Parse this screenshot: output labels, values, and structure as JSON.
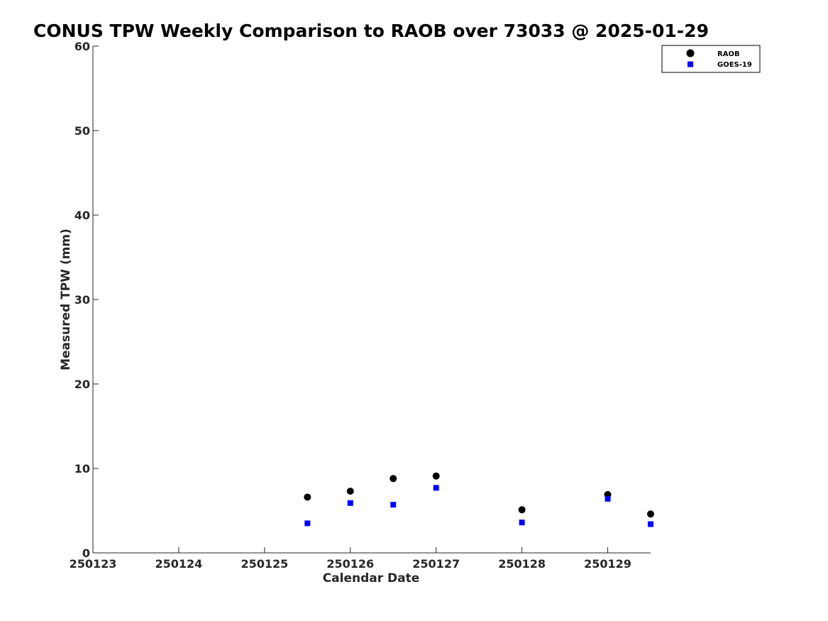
{
  "chart_data": {
    "type": "scatter",
    "title": "CONUS TPW Weekly Comparison to RAOB over 73033 @ 2025-01-29",
    "xlabel": "Calendar Date",
    "ylabel": "Measured TPW (mm)",
    "xlim": [
      0,
      6.5
    ],
    "ylim": [
      0,
      60
    ],
    "x_ticks": [
      {
        "value": 0,
        "label": "250123"
      },
      {
        "value": 1,
        "label": "250124"
      },
      {
        "value": 2,
        "label": "250125"
      },
      {
        "value": 3,
        "label": "250126"
      },
      {
        "value": 4,
        "label": "250127"
      },
      {
        "value": 5,
        "label": "250128"
      },
      {
        "value": 6,
        "label": "250129"
      }
    ],
    "y_ticks": [
      0,
      10,
      20,
      30,
      40,
      50,
      60
    ],
    "legend_position": "top-right",
    "series": [
      {
        "name": "RAOB",
        "marker": "circle",
        "color": "#000000",
        "points": [
          {
            "x": 2.5,
            "y": 6.6
          },
          {
            "x": 3.0,
            "y": 7.3
          },
          {
            "x": 3.5,
            "y": 8.8
          },
          {
            "x": 4.0,
            "y": 9.1
          },
          {
            "x": 5.0,
            "y": 5.1
          },
          {
            "x": 6.0,
            "y": 6.9
          },
          {
            "x": 6.5,
            "y": 4.6
          }
        ]
      },
      {
        "name": "GOES-19",
        "marker": "square",
        "color": "#0000ff",
        "points": [
          {
            "x": 2.5,
            "y": 3.5
          },
          {
            "x": 3.0,
            "y": 5.9
          },
          {
            "x": 3.5,
            "y": 5.7
          },
          {
            "x": 4.0,
            "y": 7.7
          },
          {
            "x": 5.0,
            "y": 3.6
          },
          {
            "x": 6.0,
            "y": 6.4
          },
          {
            "x": 6.5,
            "y": 3.4
          }
        ]
      }
    ]
  }
}
